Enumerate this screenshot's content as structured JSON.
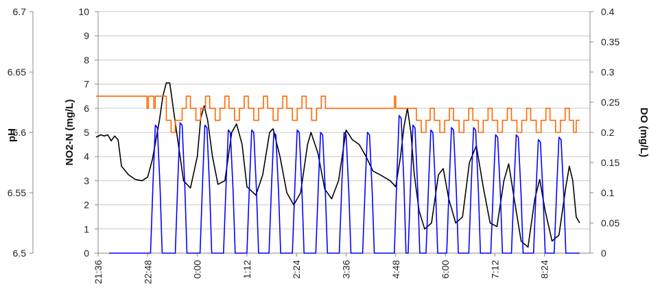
{
  "chart_data": {
    "type": "line",
    "axes": {
      "ph": {
        "label": "pH",
        "ticks": [
          "6.5",
          "6.55",
          "6.6",
          "6.65",
          "6.7"
        ],
        "range": [
          6.5,
          6.7
        ]
      },
      "no2": {
        "label": "NO2-N (mg/L)",
        "ticks": [
          "0",
          "1",
          "2",
          "3",
          "4",
          "5",
          "6",
          "7",
          "8",
          "9",
          "10"
        ],
        "range": [
          0,
          10
        ]
      },
      "do": {
        "label": "DO (mg/L)",
        "ticks": [
          "0",
          "0.05",
          "0.1",
          "0.15",
          "0.2",
          "0.25",
          "0.3",
          "0.35",
          "0.4"
        ],
        "range": [
          0,
          0.4
        ]
      },
      "time": {
        "ticks": [
          "21:36",
          "22:48",
          "0:00",
          "1:12",
          "2:24",
          "3:36",
          "4:48",
          "6:00",
          "7:12",
          "8:24"
        ]
      }
    },
    "grid_lines": "horizontal",
    "legend": "none",
    "series_colors": [
      "#000000",
      "#0000ff",
      "#ff6600"
    ],
    "series": [
      {
        "id": "ph",
        "axis": "ph",
        "color": "#000000",
        "points": [
          [
            "21:33",
            6.596
          ],
          [
            "21:40",
            6.598
          ],
          [
            "21:45",
            6.597
          ],
          [
            "21:50",
            6.598
          ],
          [
            "21:55",
            6.593
          ],
          [
            "22:00",
            6.597
          ],
          [
            "22:05",
            6.594
          ],
          [
            "22:10",
            6.572
          ],
          [
            "22:20",
            6.565
          ],
          [
            "22:30",
            6.561
          ],
          [
            "22:40",
            6.56
          ],
          [
            "22:48",
            6.563
          ],
          [
            "22:55",
            6.578
          ],
          [
            "23:05",
            6.61
          ],
          [
            "23:10",
            6.63
          ],
          [
            "23:15",
            6.641
          ],
          [
            "23:20",
            6.641
          ],
          [
            "23:30",
            6.6
          ],
          [
            "23:40",
            6.56
          ],
          [
            "23:50",
            6.554
          ],
          [
            "0:00",
            6.58
          ],
          [
            "0:05",
            6.612
          ],
          [
            "0:10",
            6.622
          ],
          [
            "0:15",
            6.61
          ],
          [
            "0:22",
            6.58
          ],
          [
            "0:30",
            6.557
          ],
          [
            "0:40",
            6.56
          ],
          [
            "0:50",
            6.6
          ],
          [
            "0:57",
            6.607
          ],
          [
            "1:05",
            6.59
          ],
          [
            "1:12",
            6.555
          ],
          [
            "1:25",
            6.548
          ],
          [
            "1:35",
            6.565
          ],
          [
            "1:45",
            6.6
          ],
          [
            "1:50",
            6.603
          ],
          [
            "2:00",
            6.58
          ],
          [
            "2:10",
            6.55
          ],
          [
            "2:20",
            6.54
          ],
          [
            "2:30",
            6.55
          ],
          [
            "2:40",
            6.59
          ],
          [
            "2:45",
            6.6
          ],
          [
            "2:55",
            6.583
          ],
          [
            "3:05",
            6.553
          ],
          [
            "3:15",
            6.545
          ],
          [
            "3:25",
            6.56
          ],
          [
            "3:36",
            6.602
          ],
          [
            "3:45",
            6.594
          ],
          [
            "3:55",
            6.59
          ],
          [
            "4:05",
            6.58
          ],
          [
            "4:15",
            6.568
          ],
          [
            "4:25",
            6.565
          ],
          [
            "4:40",
            6.56
          ],
          [
            "4:48",
            6.555
          ],
          [
            "4:55",
            6.58
          ],
          [
            "5:00",
            6.605
          ],
          [
            "5:05",
            6.62
          ],
          [
            "5:10",
            6.6
          ],
          [
            "5:15",
            6.565
          ],
          [
            "5:22",
            6.535
          ],
          [
            "5:30",
            6.52
          ],
          [
            "5:40",
            6.525
          ],
          [
            "5:50",
            6.565
          ],
          [
            "5:57",
            6.57
          ],
          [
            "6:05",
            6.545
          ],
          [
            "6:15",
            6.525
          ],
          [
            "6:25",
            6.53
          ],
          [
            "6:35",
            6.575
          ],
          [
            "6:45",
            6.589
          ],
          [
            "6:55",
            6.555
          ],
          [
            "7:05",
            6.525
          ],
          [
            "7:15",
            6.522
          ],
          [
            "7:25",
            6.56
          ],
          [
            "7:32",
            6.574
          ],
          [
            "7:40",
            6.545
          ],
          [
            "7:50",
            6.51
          ],
          [
            "8:00",
            6.505
          ],
          [
            "8:10",
            6.545
          ],
          [
            "8:17",
            6.561
          ],
          [
            "8:25",
            6.535
          ],
          [
            "8:35",
            6.51
          ],
          [
            "8:45",
            6.515
          ],
          [
            "8:55",
            6.555
          ],
          [
            "9:00",
            6.572
          ],
          [
            "9:05",
            6.56
          ],
          [
            "9:10",
            6.53
          ],
          [
            "9:15",
            6.525
          ]
        ]
      },
      {
        "id": "no2",
        "axis": "no2",
        "color": "#0000ff",
        "peaks": [
          "23:00",
          "23:36",
          "0:12",
          "0:46",
          "1:20",
          "1:52",
          "2:26",
          "3:00",
          "3:34",
          "4:08",
          "4:54",
          "5:14",
          "5:40",
          "6:10",
          "6:42",
          "7:14",
          "7:44",
          "8:16",
          "8:46"
        ],
        "peak_values": [
          5.3,
          5.4,
          5.3,
          5.1,
          5.1,
          5.0,
          5.1,
          5.0,
          5.0,
          5.0,
          5.7,
          5.3,
          5.1,
          5.2,
          5.2,
          4.9,
          4.9,
          4.7,
          4.8
        ],
        "baseline": 0,
        "baseline_start": "21:52",
        "end": "9:15"
      },
      {
        "id": "do",
        "axis": "do",
        "color": "#ff6600",
        "points": [
          [
            "21:33",
            0.26
          ],
          [
            "22:45",
            0.26
          ],
          [
            "22:47",
            0.24
          ],
          [
            "22:49",
            0.26
          ],
          [
            "22:55",
            0.26
          ],
          [
            "22:57",
            0.24
          ],
          [
            "22:59",
            0.26
          ],
          [
            "23:05",
            0.26
          ],
          [
            "23:15",
            0.22
          ],
          [
            "23:22",
            0.2
          ],
          [
            "23:28",
            0.22
          ],
          [
            "23:38",
            0.24
          ],
          [
            "23:44",
            0.26
          ],
          [
            "23:50",
            0.24
          ],
          [
            "23:58",
            0.22
          ],
          [
            "0:05",
            0.24
          ],
          [
            "0:12",
            0.26
          ],
          [
            "0:18",
            0.24
          ],
          [
            "0:26",
            0.22
          ],
          [
            "0:33",
            0.24
          ],
          [
            "0:40",
            0.26
          ],
          [
            "0:46",
            0.24
          ],
          [
            "0:54",
            0.22
          ],
          [
            "1:01",
            0.24
          ],
          [
            "1:08",
            0.26
          ],
          [
            "1:14",
            0.24
          ],
          [
            "1:22",
            0.22
          ],
          [
            "1:29",
            0.24
          ],
          [
            "1:36",
            0.26
          ],
          [
            "1:42",
            0.24
          ],
          [
            "1:50",
            0.22
          ],
          [
            "1:57",
            0.24
          ],
          [
            "2:04",
            0.26
          ],
          [
            "2:10",
            0.24
          ],
          [
            "2:18",
            0.22
          ],
          [
            "2:25",
            0.24
          ],
          [
            "2:32",
            0.26
          ],
          [
            "2:38",
            0.24
          ],
          [
            "2:46",
            0.22
          ],
          [
            "2:53",
            0.24
          ],
          [
            "3:00",
            0.26
          ],
          [
            "3:06",
            0.24
          ],
          [
            "4:44",
            0.24
          ],
          [
            "4:46",
            0.26
          ],
          [
            "4:48",
            0.24
          ],
          [
            "5:12",
            0.24
          ],
          [
            "5:18",
            0.22
          ],
          [
            "5:25",
            0.2
          ],
          [
            "5:32",
            0.22
          ],
          [
            "5:38",
            0.24
          ],
          [
            "5:44",
            0.22
          ],
          [
            "5:52",
            0.2
          ],
          [
            "5:59",
            0.22
          ],
          [
            "6:06",
            0.24
          ],
          [
            "6:12",
            0.22
          ],
          [
            "6:20",
            0.2
          ],
          [
            "6:27",
            0.22
          ],
          [
            "6:34",
            0.24
          ],
          [
            "6:40",
            0.22
          ],
          [
            "6:48",
            0.2
          ],
          [
            "6:55",
            0.22
          ],
          [
            "7:02",
            0.24
          ],
          [
            "7:08",
            0.22
          ],
          [
            "7:16",
            0.2
          ],
          [
            "7:23",
            0.22
          ],
          [
            "7:30",
            0.24
          ],
          [
            "7:36",
            0.22
          ],
          [
            "7:44",
            0.2
          ],
          [
            "7:51",
            0.22
          ],
          [
            "7:58",
            0.24
          ],
          [
            "8:04",
            0.22
          ],
          [
            "8:12",
            0.2
          ],
          [
            "8:19",
            0.22
          ],
          [
            "8:26",
            0.24
          ],
          [
            "8:32",
            0.22
          ],
          [
            "8:40",
            0.2
          ],
          [
            "8:47",
            0.22
          ],
          [
            "8:54",
            0.24
          ],
          [
            "9:00",
            0.22
          ],
          [
            "9:06",
            0.2
          ],
          [
            "9:10",
            0.22
          ],
          [
            "9:15",
            0.22
          ]
        ]
      }
    ]
  }
}
